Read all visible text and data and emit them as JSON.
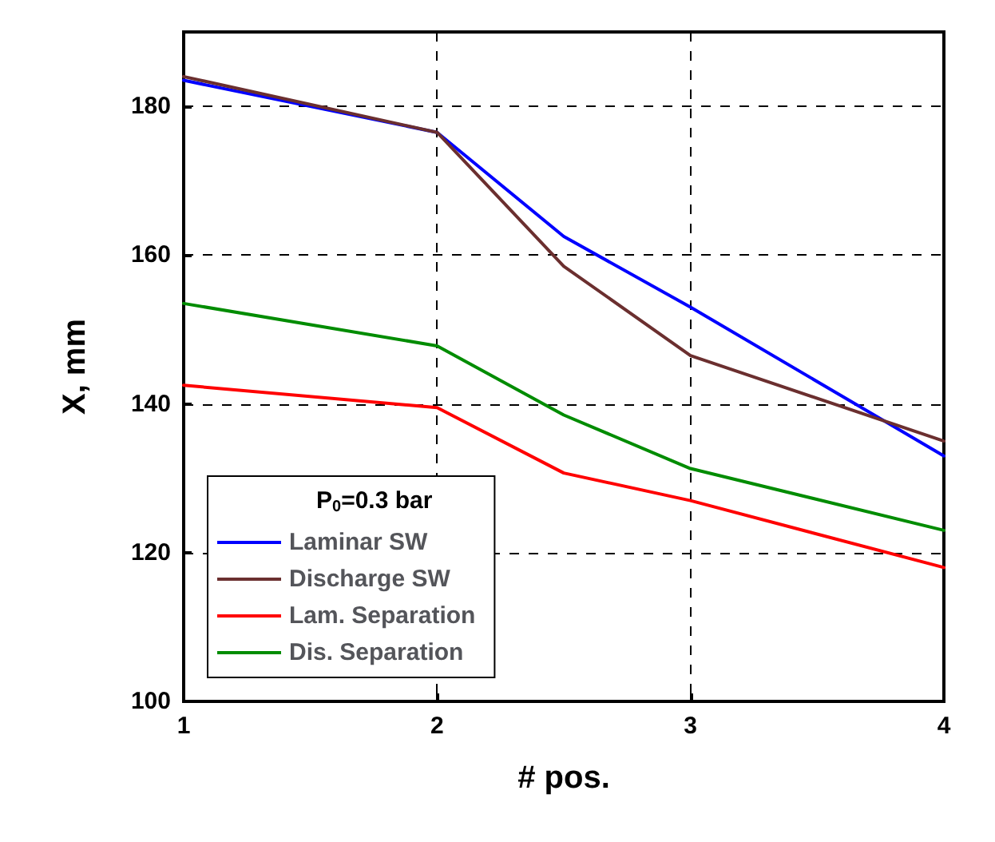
{
  "chart_data": {
    "type": "line",
    "xlabel": "# pos.",
    "ylabel": "X, mm",
    "legend_title": "P$_{0}$=0.3 bar",
    "legend": "bottom left",
    "grid": true,
    "line_style": "solid",
    "marker": "none",
    "x": [
      1,
      2,
      2.5,
      3,
      4
    ],
    "xlim": [
      1,
      4
    ],
    "xticks": [
      1,
      2,
      3,
      4
    ],
    "ylim": [
      100,
      190
    ],
    "yticks": [
      100,
      120,
      140,
      160,
      180
    ],
    "series": [
      {
        "name": "Laminar SW",
        "color": "#0000ff",
        "values": [
          183.5,
          176.5,
          162.5,
          153,
          133
        ]
      },
      {
        "name": "Discharge SW",
        "color": "#6b2f2f",
        "values": [
          184,
          176.5,
          158.5,
          146.5,
          135
        ]
      },
      {
        "name": "Lam. Separation",
        "color": "#ff0000",
        "values": [
          142.5,
          139.5,
          130.7,
          127,
          118
        ]
      },
      {
        "name": "Dis. Separation",
        "color": "#008c00",
        "values": [
          153.5,
          147.8,
          138.5,
          131.3,
          123
        ]
      }
    ]
  }
}
